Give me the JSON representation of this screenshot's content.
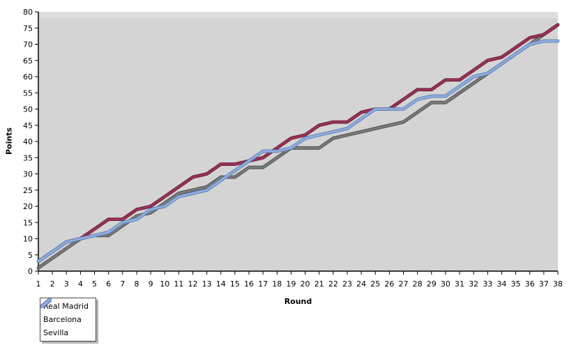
{
  "chart_data": {
    "type": "line",
    "title": "",
    "xlabel": "Round",
    "ylabel": "Points",
    "xlim": [
      1,
      38
    ],
    "ylim": [
      0,
      80
    ],
    "grid": false,
    "plot_bg": "#d4d4d4",
    "plot_bg_top": "#dedede",
    "axis_color": "#000000",
    "xticks": [
      1,
      2,
      3,
      4,
      5,
      6,
      7,
      8,
      9,
      10,
      11,
      12,
      13,
      14,
      15,
      16,
      17,
      18,
      19,
      20,
      21,
      22,
      23,
      24,
      25,
      26,
      27,
      28,
      29,
      30,
      31,
      32,
      33,
      34,
      35,
      36,
      37,
      38
    ],
    "yticks": [
      0,
      5,
      10,
      15,
      20,
      25,
      30,
      35,
      40,
      45,
      50,
      55,
      60,
      65,
      70,
      75,
      80
    ],
    "legend": {
      "position": "bottom-left"
    },
    "x": [
      1,
      2,
      3,
      4,
      5,
      6,
      7,
      8,
      9,
      10,
      11,
      12,
      13,
      14,
      15,
      16,
      17,
      18,
      19,
      20,
      21,
      22,
      23,
      24,
      25,
      26,
      27,
      28,
      29,
      30,
      31,
      32,
      33,
      34,
      35,
      36,
      37,
      38
    ],
    "series": [
      {
        "name": "Real Madrid",
        "color": "#7b7b7b",
        "edge_color": "#4d4d4d",
        "values": [
          1,
          4,
          7,
          10,
          11,
          11,
          14,
          17,
          18,
          21,
          24,
          25,
          26,
          29,
          29,
          32,
          32,
          35,
          38,
          38,
          38,
          41,
          42,
          43,
          44,
          45,
          46,
          49,
          52,
          52,
          55,
          58,
          61,
          64,
          67,
          70,
          73,
          76
        ]
      },
      {
        "name": "Barcelona",
        "color": "#993356",
        "edge_color": "#6b2040",
        "values": [
          3,
          6,
          9,
          10,
          13,
          16,
          16,
          19,
          20,
          23,
          26,
          29,
          30,
          33,
          33,
          34,
          35,
          38,
          41,
          42,
          45,
          46,
          46,
          49,
          50,
          50,
          53,
          56,
          56,
          59,
          59,
          62,
          65,
          66,
          69,
          72,
          73,
          76
        ]
      },
      {
        "name": "Sevilla",
        "color": "#8fafdc",
        "edge_color": "#6080b8",
        "values": [
          3,
          6,
          9,
          10,
          11,
          12,
          15,
          16,
          19,
          20,
          23,
          24,
          25,
          28,
          31,
          34,
          37,
          37,
          38,
          41,
          42,
          43,
          44,
          47,
          50,
          50,
          50,
          53,
          54,
          54,
          57,
          60,
          61,
          64,
          67,
          70,
          71,
          71
        ]
      }
    ]
  }
}
